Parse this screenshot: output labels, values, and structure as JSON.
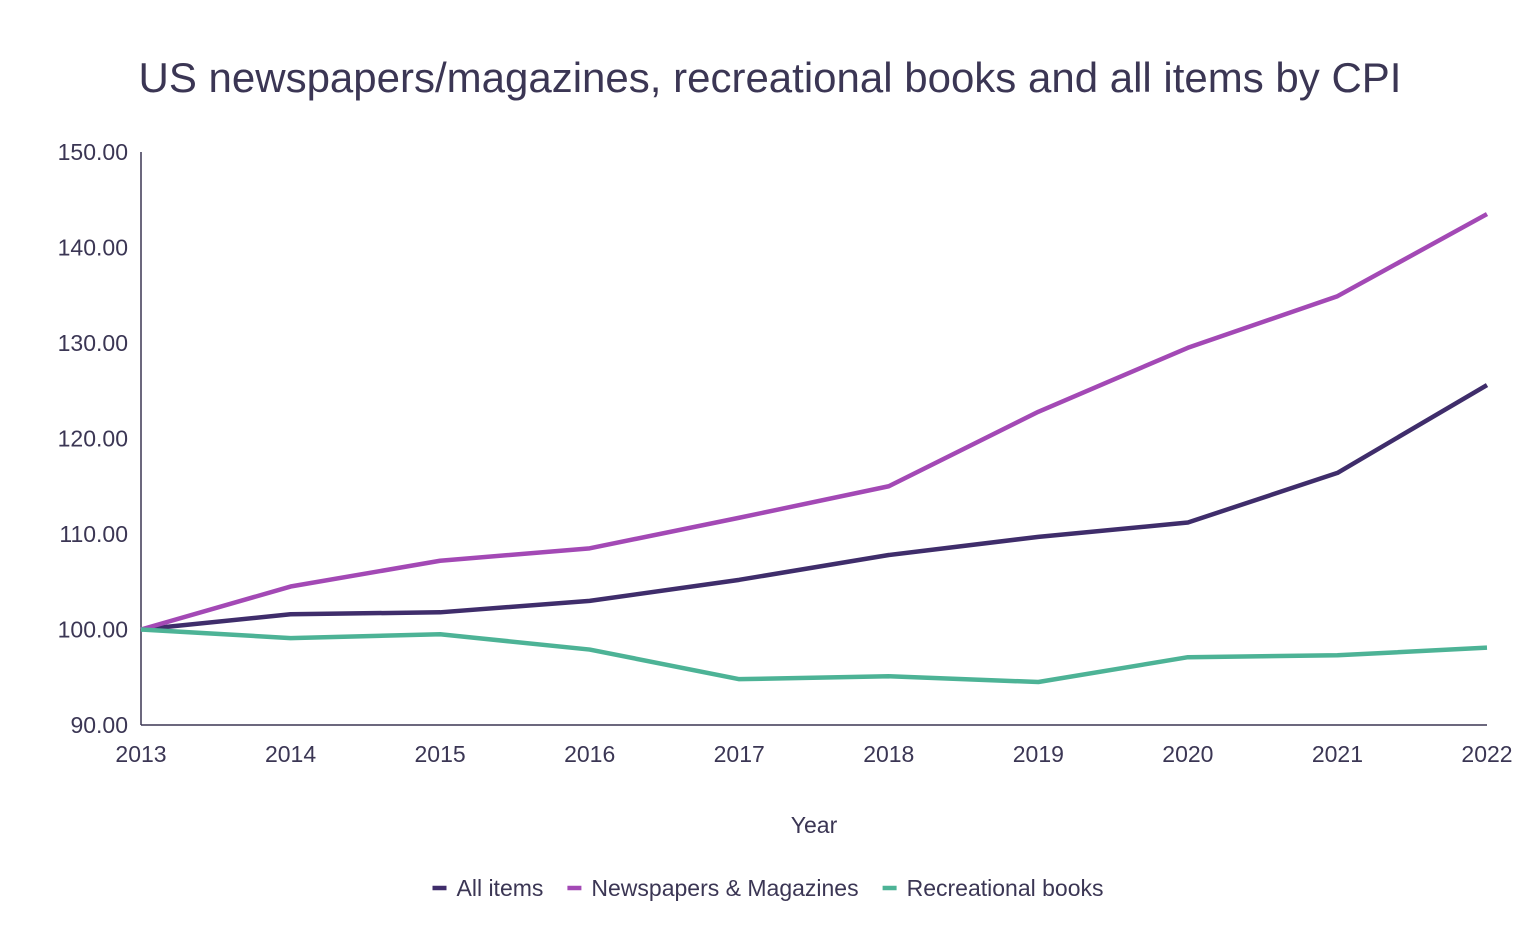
{
  "chart_data": {
    "type": "line",
    "title": "US newspapers/magazines, recreational books and all items by CPI",
    "xlabel": "Year",
    "ylabel": "",
    "x": [
      "2013",
      "2014",
      "2015",
      "2016",
      "2017",
      "2018",
      "2019",
      "2020",
      "2021",
      "2022"
    ],
    "ylim": [
      90,
      150
    ],
    "yticks": [
      "90.00",
      "100.00",
      "110.00",
      "120.00",
      "130.00",
      "140.00",
      "150.00"
    ],
    "grid": false,
    "legend_position": "bottom",
    "series": [
      {
        "name": "All items",
        "color": "#3f2d6b",
        "values": [
          100.0,
          101.6,
          101.8,
          103.0,
          105.2,
          107.8,
          109.7,
          111.2,
          116.4,
          125.6
        ]
      },
      {
        "name": "Newspapers & Magazines",
        "color": "#a349b5",
        "values": [
          100.0,
          104.5,
          107.2,
          108.5,
          111.7,
          115.0,
          122.8,
          129.5,
          134.9,
          143.5
        ]
      },
      {
        "name": "Recreational books",
        "color": "#4db396",
        "values": [
          100.0,
          99.1,
          99.5,
          97.9,
          94.8,
          95.1,
          94.5,
          97.1,
          97.3,
          98.1
        ]
      }
    ]
  }
}
